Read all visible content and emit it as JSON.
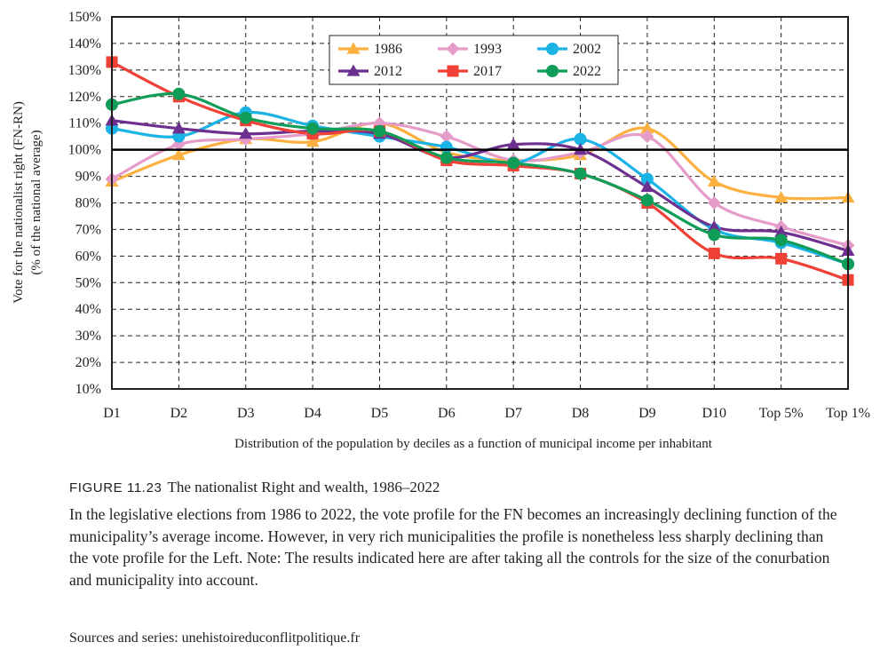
{
  "chart_data": {
    "type": "line",
    "xlabel": "Distribution of the population by deciles as a function of municipal income per inhabitant",
    "ylabel": "Vote for the nationalist right (FN-RN)",
    "ylabel_sub": "(% of the national average)",
    "categories": [
      "D1",
      "D2",
      "D3",
      "D4",
      "D5",
      "D6",
      "D7",
      "D8",
      "D9",
      "D10",
      "Top 5%",
      "Top 1%"
    ],
    "ylim": [
      10,
      150
    ],
    "yticks": [
      10,
      20,
      30,
      40,
      50,
      60,
      70,
      80,
      90,
      100,
      110,
      120,
      130,
      140,
      150
    ],
    "ytick_labels": [
      "10%",
      "20%",
      "30%",
      "40%",
      "50%",
      "60%",
      "70%",
      "80%",
      "90%",
      "100%",
      "110%",
      "120%",
      "130%",
      "140%",
      "150%"
    ],
    "reference_line": 100,
    "grid": true,
    "legend_position": "top-right",
    "series": [
      {
        "name": "1986",
        "color": "#fbb040",
        "marker": "triangle",
        "values": [
          88,
          98,
          104,
          103,
          110,
          99,
          96,
          98,
          108,
          88,
          82,
          82
        ]
      },
      {
        "name": "1993",
        "color": "#e59cc9",
        "marker": "diamond",
        "values": [
          89,
          102,
          104,
          106,
          110,
          105,
          96,
          99,
          105,
          80,
          71,
          64
        ]
      },
      {
        "name": "2002",
        "color": "#1ab3e6",
        "marker": "circle",
        "values": [
          108,
          105,
          114,
          109,
          105,
          101,
          95,
          104,
          89,
          70,
          65,
          57
        ]
      },
      {
        "name": "2012",
        "color": "#6e3090",
        "marker": "triangle",
        "values": [
          111,
          108,
          106,
          107,
          106,
          97,
          102,
          100,
          86,
          71,
          69,
          62
        ]
      },
      {
        "name": "2017",
        "color": "#ef4136",
        "marker": "square",
        "values": [
          133,
          120,
          111,
          106,
          107,
          96,
          94,
          91,
          80,
          61,
          59,
          51
        ]
      },
      {
        "name": "2022",
        "color": "#0f9d58",
        "marker": "circle",
        "values": [
          117,
          121,
          112,
          108,
          107,
          97,
          95,
          91,
          81,
          68,
          66,
          57
        ]
      }
    ]
  },
  "figure": {
    "label": "FIGURE 11.23",
    "title": "The nationalist Right and wealth, 1986–2022",
    "caption": "In the legislative elections from 1986 to 2022, the vote profile for the FN becomes an increasingly declining function of the municipality’s average income. However, in very rich municipalities the profile is nonetheless less sharply declining than the vote profile for the Left. Note: The results indicated here are after taking all the controls for the size of the conurbation and municipality into account.",
    "sources": "Sources and series: unehistoireduconflitpolitique.fr"
  }
}
